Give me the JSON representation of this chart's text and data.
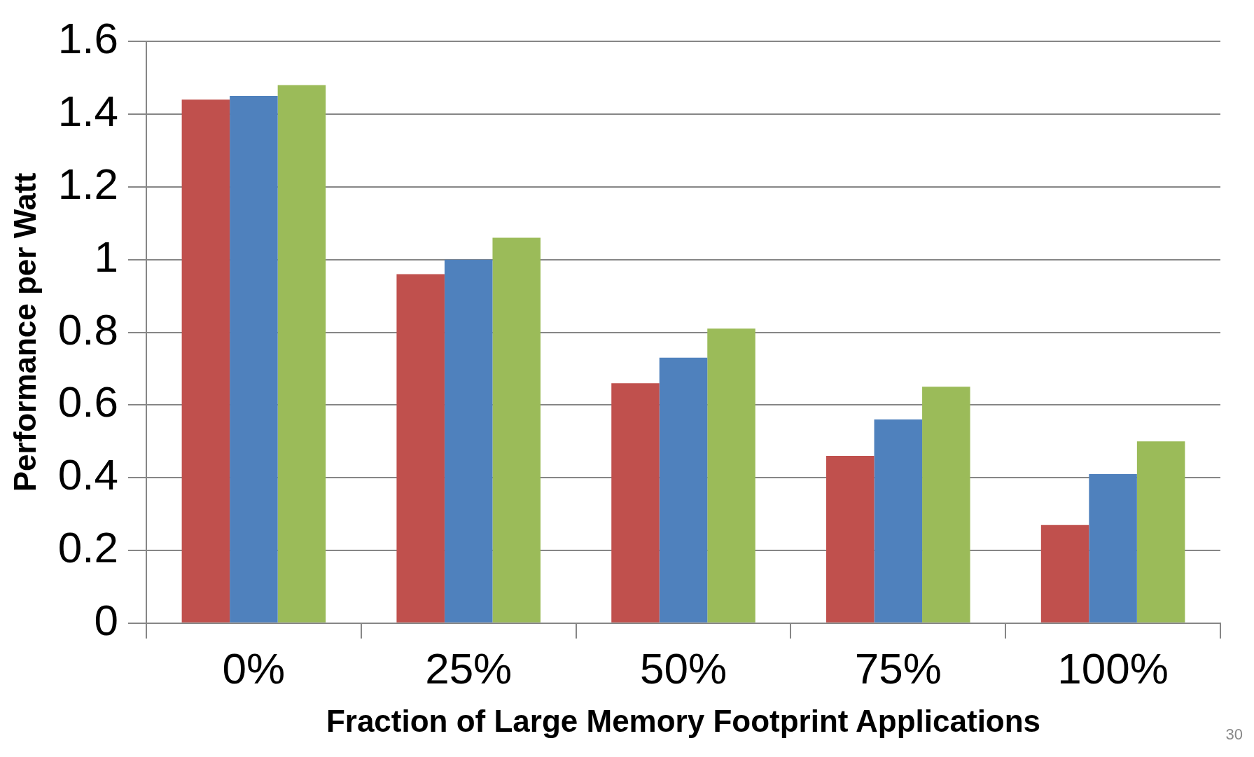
{
  "chart_data": {
    "type": "bar",
    "xlabel": "Fraction of Large Memory Footprint Applications",
    "ylabel": "Performance per Watt",
    "categories": [
      "0%",
      "25%",
      "50%",
      "75%",
      "100%"
    ],
    "series": [
      {
        "color": "#c0504d",
        "values": [
          1.44,
          0.96,
          0.66,
          0.46,
          0.27
        ]
      },
      {
        "color": "#4f81bd",
        "values": [
          1.45,
          1.0,
          0.73,
          0.56,
          0.41
        ]
      },
      {
        "color": "#9bbb59",
        "values": [
          1.48,
          1.06,
          0.81,
          0.65,
          0.5
        ]
      }
    ],
    "ylim": [
      0,
      1.6
    ],
    "yticks": [
      0,
      0.2,
      0.4,
      0.6,
      0.8,
      1,
      1.2,
      1.4,
      1.6
    ],
    "grid": "y",
    "legend": false,
    "annotations": [
      "30"
    ]
  }
}
